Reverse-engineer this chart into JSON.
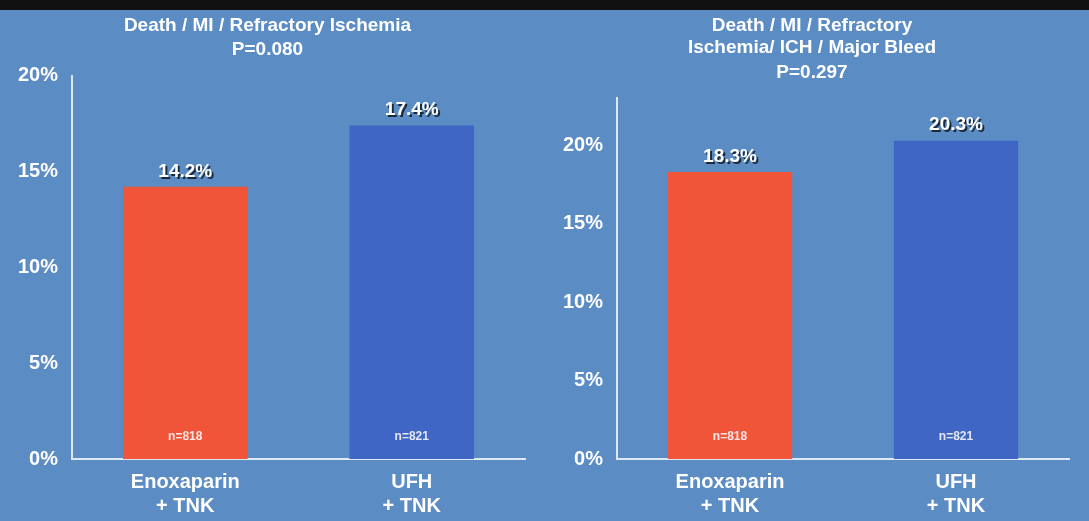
{
  "chart_data": [
    {
      "type": "bar",
      "title": "Death / MI / Refractory Ischemia",
      "subtitle": "P=0.080",
      "categories": [
        "Enoxaparin\n+ TNK",
        "UFH\n+ TNK"
      ],
      "series": [
        {
          "colors": [
            "#f0553a",
            "#3f66c4"
          ],
          "values": [
            14.2,
            17.4
          ],
          "value_labels": [
            "14.2%",
            "17.4%"
          ]
        }
      ],
      "ylim": [
        0,
        20
      ],
      "yticks": [
        {
          "value": 0,
          "label": "0%"
        },
        {
          "value": 5,
          "label": "5%"
        },
        {
          "value": 10,
          "label": "10%"
        },
        {
          "value": 15,
          "label": "15%"
        },
        {
          "value": 20,
          "label": "20%"
        }
      ],
      "annotations": [
        "n=818",
        "n=821"
      ],
      "grid": false,
      "legend": false
    },
    {
      "type": "bar",
      "title": "Death / MI / Refractory\nIschemia/ ICH / Major Bleed",
      "subtitle": "P=0.297",
      "categories": [
        "Enoxaparin\n+ TNK",
        "UFH\n+ TNK"
      ],
      "series": [
        {
          "colors": [
            "#f0553a",
            "#3f66c4"
          ],
          "values": [
            18.3,
            20.3
          ],
          "value_labels": [
            "18.3%",
            "20.3%"
          ]
        }
      ],
      "ylim": [
        0,
        23
      ],
      "yticks": [
        {
          "value": 0,
          "label": "0%"
        },
        {
          "value": 5,
          "label": "5%"
        },
        {
          "value": 10,
          "label": "10%"
        },
        {
          "value": 15,
          "label": "15%"
        },
        {
          "value": 20,
          "label": "20%"
        }
      ],
      "annotations": [
        "n=818",
        "n=821"
      ],
      "grid": false,
      "legend": false
    }
  ]
}
